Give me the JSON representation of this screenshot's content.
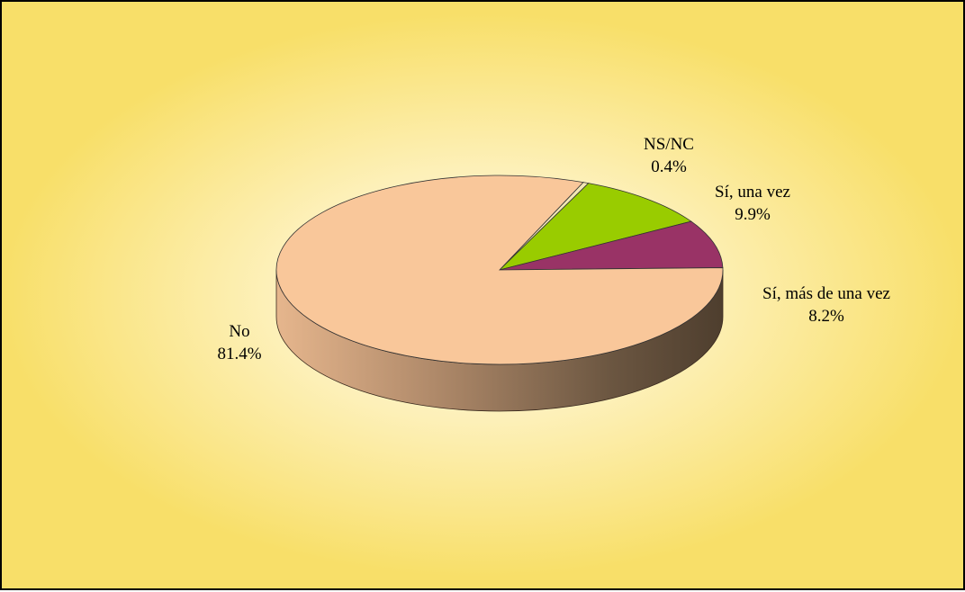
{
  "chart_data": {
    "type": "pie",
    "title": "",
    "slices": [
      {
        "label": "NS/NC",
        "value": 0.4,
        "value_label": "0.4%",
        "color": "#f3e7b4"
      },
      {
        "label": "Sí, una vez",
        "value": 9.9,
        "value_label": "9.9%",
        "color": "#99cc00"
      },
      {
        "label": "Sí, más de una vez",
        "value": 8.2,
        "value_label": "8.2%",
        "color": "#993366"
      },
      {
        "label": "No",
        "value": 81.4,
        "value_label": "81.4%",
        "color": "#f9c79a"
      }
    ],
    "style": "3d",
    "background_colors": [
      "#fffbe6",
      "#f8df69"
    ]
  }
}
